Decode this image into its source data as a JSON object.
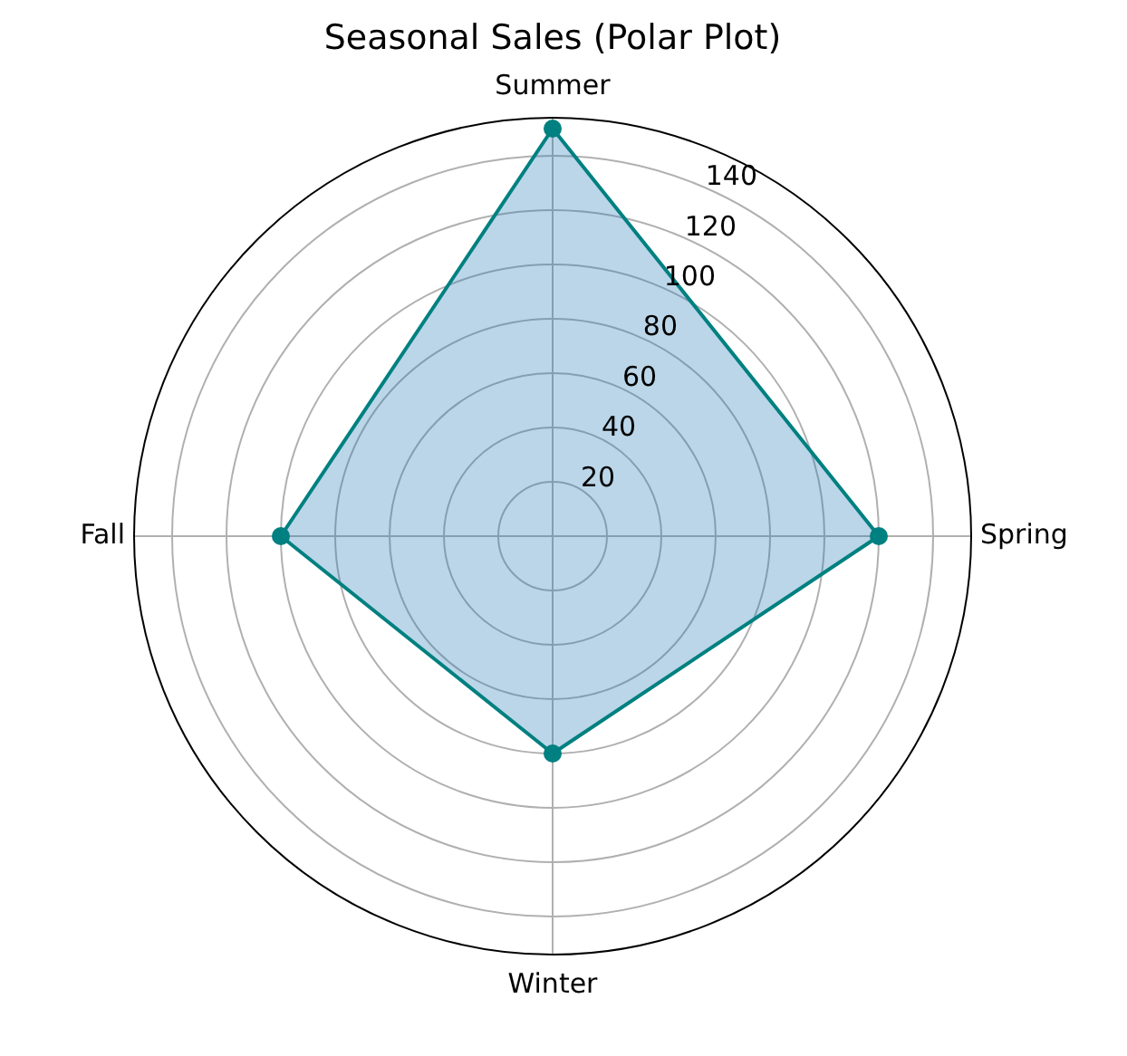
{
  "chart_data": {
    "type": "radar",
    "title": "Seasonal Sales (Polar Plot)",
    "categories": [
      "Summer",
      "Spring",
      "Winter",
      "Fall"
    ],
    "series": [
      {
        "color": "#008080",
        "values": [
          150,
          120,
          80,
          100
        ]
      }
    ],
    "ylim": [
      0,
      154
    ],
    "yticks": [
      20,
      40,
      60,
      80,
      100,
      120,
      140
    ],
    "grid": true,
    "marker": "circle",
    "line_style": "solid"
  }
}
